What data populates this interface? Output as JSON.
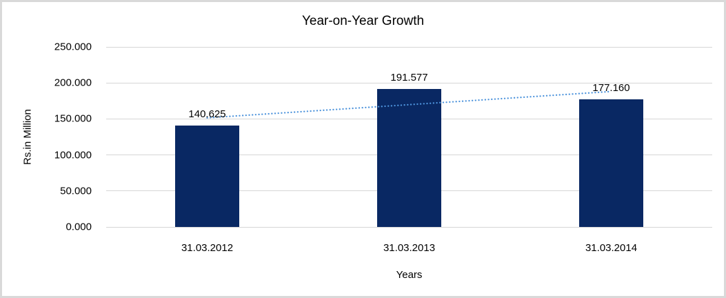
{
  "chart_data": {
    "type": "bar",
    "title": "Year-on-Year Growth",
    "categories": [
      "31.03.2012",
      "31.03.2013",
      "31.03.2014"
    ],
    "values": [
      140.625,
      191.577,
      177.16
    ],
    "data_labels": [
      "140.625",
      "191.577",
      "177.160"
    ],
    "xlabel": "Years",
    "ylabel": "Rs.in Million",
    "ylim": [
      0,
      250
    ],
    "ytick_step": 50,
    "ytick_labels": [
      "0.000",
      "50.000",
      "100.000",
      "150.000",
      "200.000",
      "250.000"
    ],
    "grid": true,
    "legend": "none",
    "trendline": {
      "type": "linear",
      "style": "dotted",
      "span": "first-to-last-category",
      "color": "#4E94DC"
    },
    "colors": {
      "bar": "#092863",
      "gridline": "#D6D6D6",
      "text": "#000000",
      "frame_border": "#D9D9D9",
      "background": "#FFFFFF"
    }
  }
}
